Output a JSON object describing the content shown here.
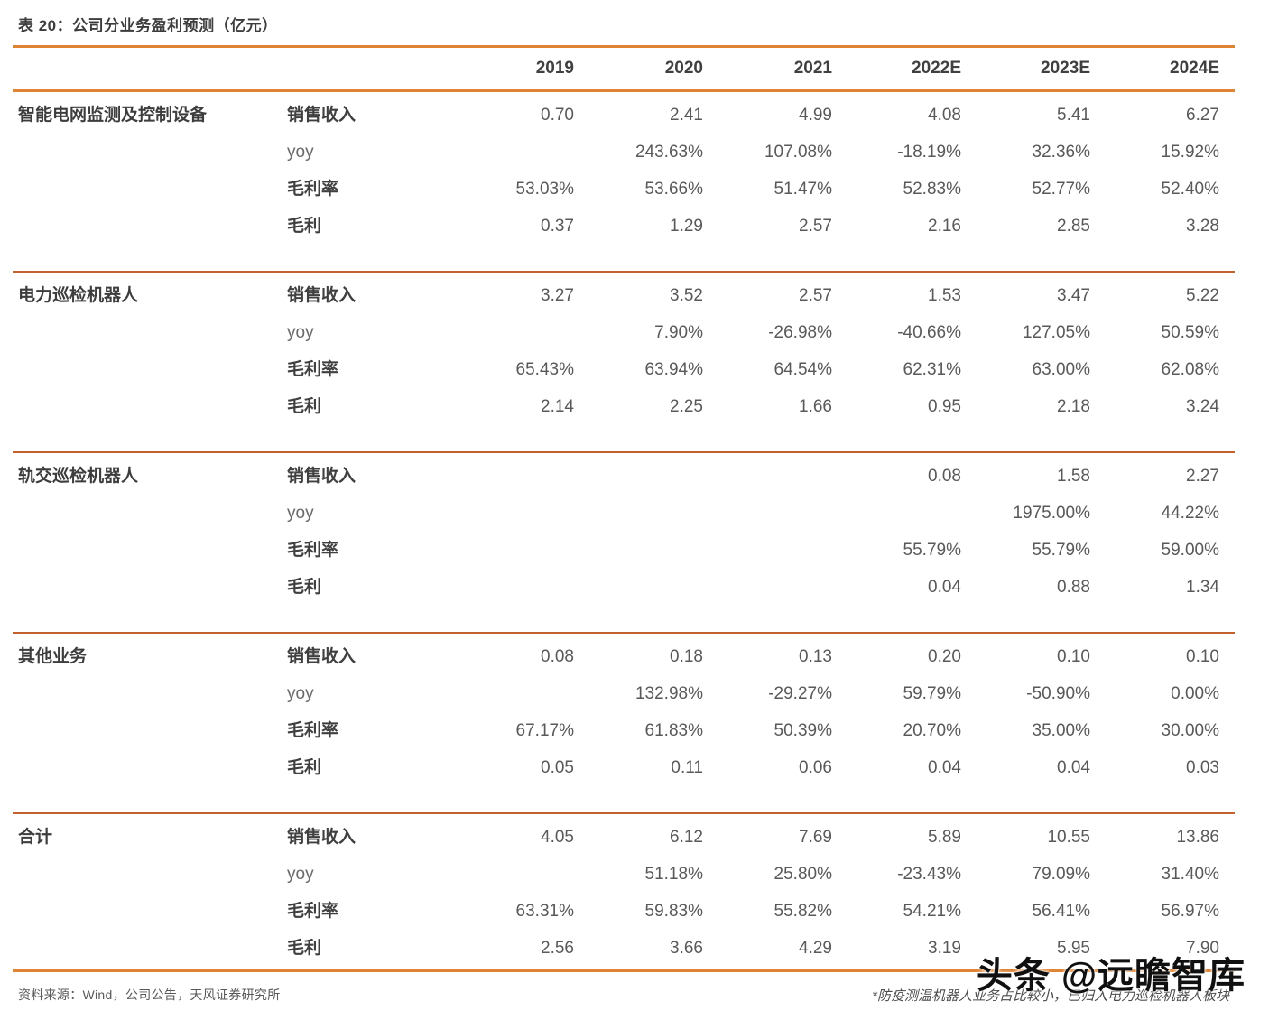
{
  "title": "表 20：公司分业务盈利预测（亿元）",
  "colors": {
    "accent": "#DF8435",
    "separator": "#C2612E"
  },
  "table": {
    "columns": [
      "2019",
      "2020",
      "2021",
      "2022E",
      "2023E",
      "2024E"
    ],
    "groups": [
      {
        "name": "智能电网监测及控制设备",
        "rows": [
          {
            "label": "销售收入",
            "values": [
              "0.70",
              "2.41",
              "4.99",
              "4.08",
              "5.41",
              "6.27"
            ]
          },
          {
            "label": "yoy",
            "values": [
              "",
              "243.63%",
              "107.08%",
              "-18.19%",
              "32.36%",
              "15.92%"
            ]
          },
          {
            "label": "毛利率",
            "values": [
              "53.03%",
              "53.66%",
              "51.47%",
              "52.83%",
              "52.77%",
              "52.40%"
            ]
          },
          {
            "label": "毛利",
            "values": [
              "0.37",
              "1.29",
              "2.57",
              "2.16",
              "2.85",
              "3.28"
            ]
          }
        ]
      },
      {
        "name": "电力巡检机器人",
        "rows": [
          {
            "label": "销售收入",
            "values": [
              "3.27",
              "3.52",
              "2.57",
              "1.53",
              "3.47",
              "5.22"
            ]
          },
          {
            "label": "yoy",
            "values": [
              "",
              "7.90%",
              "-26.98%",
              "-40.66%",
              "127.05%",
              "50.59%"
            ]
          },
          {
            "label": "毛利率",
            "values": [
              "65.43%",
              "63.94%",
              "64.54%",
              "62.31%",
              "63.00%",
              "62.08%"
            ]
          },
          {
            "label": "毛利",
            "values": [
              "2.14",
              "2.25",
              "1.66",
              "0.95",
              "2.18",
              "3.24"
            ]
          }
        ]
      },
      {
        "name": "轨交巡检机器人",
        "rows": [
          {
            "label": "销售收入",
            "values": [
              "",
              "",
              "",
              "0.08",
              "1.58",
              "2.27"
            ]
          },
          {
            "label": "yoy",
            "values": [
              "",
              "",
              "",
              "",
              "1975.00%",
              "44.22%"
            ]
          },
          {
            "label": "毛利率",
            "values": [
              "",
              "",
              "",
              "55.79%",
              "55.79%",
              "59.00%"
            ]
          },
          {
            "label": "毛利",
            "values": [
              "",
              "",
              "",
              "0.04",
              "0.88",
              "1.34"
            ]
          }
        ]
      },
      {
        "name": "其他业务",
        "rows": [
          {
            "label": "销售收入",
            "values": [
              "0.08",
              "0.18",
              "0.13",
              "0.20",
              "0.10",
              "0.10"
            ]
          },
          {
            "label": "yoy",
            "values": [
              "",
              "132.98%",
              "-29.27%",
              "59.79%",
              "-50.90%",
              "0.00%"
            ]
          },
          {
            "label": "毛利率",
            "values": [
              "67.17%",
              "61.83%",
              "50.39%",
              "20.70%",
              "35.00%",
              "30.00%"
            ]
          },
          {
            "label": "毛利",
            "values": [
              "0.05",
              "0.11",
              "0.06",
              "0.04",
              "0.04",
              "0.03"
            ]
          }
        ]
      },
      {
        "name": "合计",
        "rows": [
          {
            "label": "销售收入",
            "values": [
              "4.05",
              "6.12",
              "7.69",
              "5.89",
              "10.55",
              "13.86"
            ]
          },
          {
            "label": "yoy",
            "values": [
              "",
              "51.18%",
              "25.80%",
              "-23.43%",
              "79.09%",
              "31.40%"
            ]
          },
          {
            "label": "毛利率",
            "values": [
              "63.31%",
              "59.83%",
              "55.82%",
              "54.21%",
              "56.41%",
              "56.97%"
            ]
          },
          {
            "label": "毛利",
            "values": [
              "2.56",
              "3.66",
              "4.29",
              "3.19",
              "5.95",
              "7.90"
            ]
          }
        ]
      }
    ]
  },
  "footer": {
    "source": "资料来源：Wind，公司公告，天风证券研究所",
    "note": "*防疫测温机器人业务占比较小，已归入电力巡检机器人板块"
  },
  "watermark": "头条 @远瞻智库"
}
